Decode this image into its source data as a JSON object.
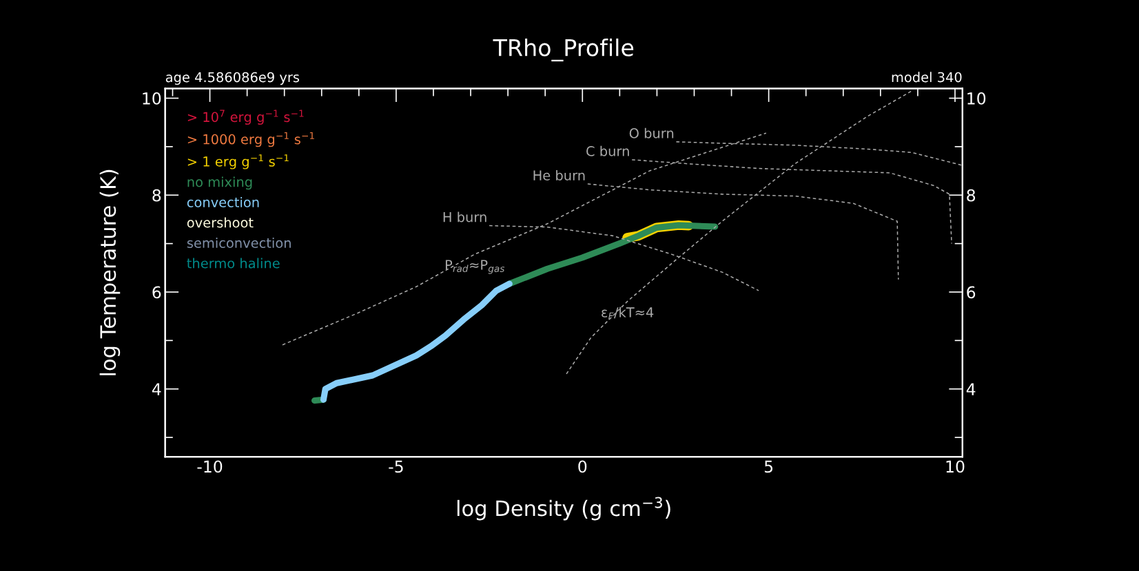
{
  "chart_data": {
    "type": "line",
    "title": "TRho_Profile",
    "xlabel": "log Density (g cm$^{−3}$)",
    "ylabel": "log Temperature (K)",
    "xlim": [
      -11.2,
      10.2
    ],
    "ylim": [
      2.6,
      10.2
    ],
    "y2lim": [
      2.6,
      10.2
    ],
    "xticks": [
      {
        "value": -11,
        "label": null
      },
      -10,
      {
        "value": -9,
        "label": null
      },
      {
        "value": -8,
        "label": null
      },
      {
        "value": -7,
        "label": null
      },
      {
        "value": -6,
        "label": null
      },
      -5,
      {
        "value": -4,
        "label": null
      },
      {
        "value": -3,
        "label": null
      },
      {
        "value": -2,
        "label": null
      },
      {
        "value": -1,
        "label": null
      },
      0,
      {
        "value": 1,
        "label": null
      },
      {
        "value": 2,
        "label": null
      },
      {
        "value": 3,
        "label": null
      },
      {
        "value": 4,
        "label": null
      },
      5,
      {
        "value": 6,
        "label": null
      },
      {
        "value": 7,
        "label": null
      },
      {
        "value": 8,
        "label": null
      },
      {
        "value": 9,
        "label": null
      },
      10
    ],
    "yticks": [
      {
        "value": 3,
        "label": null
      },
      4,
      {
        "value": 5,
        "label": null
      },
      6,
      {
        "value": 7,
        "label": null
      },
      8,
      {
        "value": 9,
        "label": null
      },
      10
    ],
    "y2ticks": [
      {
        "value": 3,
        "label": null
      },
      4,
      {
        "value": 5,
        "label": null
      },
      6,
      {
        "value": 7,
        "label": null
      },
      8,
      {
        "value": 9,
        "label": null
      },
      10
    ],
    "legend": "top left",
    "grid": false,
    "series": [
      {
        "name": "> 10$^{7}$ erg g$^{−1}$ s$^{−1}$",
        "color": "#d4143c",
        "line_style": "solid"
      },
      {
        "name": "> 1000 erg g$^{−1}$ s$^{−1}$",
        "color": "#f07a40",
        "line_style": "solid"
      },
      {
        "name": "> 1 erg g$^{−1}$ s$^{−1}$",
        "color": "#f5d200",
        "line_style": "solid",
        "x": [
          1.2,
          1.5,
          1.99,
          2.58,
          2.85
        ],
        "values": [
          7.12,
          7.16,
          7.33,
          7.38,
          7.37
        ]
      },
      {
        "name": "no mixing",
        "color": "#2e8b57",
        "line_style": "solid",
        "x": [
          -7.19,
          -6.95,
          -4.0,
          -1.96,
          -0.94,
          0,
          1.02,
          1.5,
          1.99,
          2.58,
          3.56
        ],
        "values": [
          3.76,
          3.78,
          null,
          6.17,
          6.48,
          6.71,
          7.01,
          7.16,
          7.33,
          7.38,
          7.35
        ]
      },
      {
        "name": "convection",
        "color": "#87cefa",
        "line_style": "solid",
        "x": [
          -6.95,
          -6.9,
          -6.6,
          -5.63,
          -4.46,
          -4.07,
          -3.68,
          -3.19,
          -2.7,
          -2.31,
          -1.96
        ],
        "values": [
          3.78,
          4.0,
          4.12,
          4.28,
          4.69,
          4.88,
          5.1,
          5.43,
          5.73,
          6.03,
          6.17
        ]
      },
      {
        "name": "overshoot",
        "color": "#fffde0",
        "line_style": "solid"
      },
      {
        "name": "semiconvection",
        "color": "#8090a8",
        "line_style": "solid"
      },
      {
        "name": "thermo haline",
        "color": "#008b8b",
        "line_style": "solid"
      },
      {
        "color": "#aaaaaa",
        "line_style": "dashed",
        "x": [
          -2.5,
          -0.94,
          0.82,
          2.39,
          3.75,
          4.73
        ],
        "values": [
          7.37,
          7.34,
          7.16,
          6.78,
          6.41,
          6.03
        ]
      },
      {
        "color": "#aaaaaa",
        "line_style": "dashed",
        "x": [
          0.14,
          1.8,
          3.75,
          5.71,
          7.27,
          8.45,
          8.48
        ],
        "values": [
          8.23,
          8.11,
          8.02,
          7.98,
          7.83,
          7.46,
          6.26
        ]
      },
      {
        "color": "#aaaaaa",
        "line_style": "dashed",
        "x": [
          1.33,
          2.78,
          4.73,
          6.69,
          8.25,
          9.42,
          9.85,
          9.91
        ],
        "values": [
          8.73,
          8.65,
          8.55,
          8.5,
          8.46,
          8.2,
          8.02,
          7.0
        ]
      },
      {
        "color": "#aaaaaa",
        "line_style": "dashed",
        "x": [
          2.52,
          3.75,
          5.71,
          7.66,
          8.84,
          10.17
        ],
        "values": [
          9.1,
          9.07,
          9.03,
          8.95,
          8.88,
          8.62
        ]
      },
      {
        "color": "#aaaaaa",
        "line_style": "dashed",
        "x": [
          -8.05,
          -7.59,
          -6.02,
          -4.46,
          -2.89,
          -0.94,
          1.8,
          4.93
        ],
        "values": [
          4.91,
          5.06,
          5.57,
          6.11,
          6.78,
          7.41,
          8.5,
          9.28
        ]
      },
      {
        "color": "#aaaaaa",
        "line_style": "dashed",
        "x": [
          -0.43,
          0.23,
          1.21,
          2.58,
          3.75,
          5.71,
          7.66,
          8.84
        ],
        "values": [
          4.31,
          5.06,
          5.81,
          6.71,
          7.46,
          8.65,
          9.63,
          10.15
        ]
      }
    ],
    "annotations": [
      {
        "text": "H burn",
        "x": -2.5,
        "y": 7.37
      },
      {
        "text": "He burn",
        "x": 0.14,
        "y": 8.23
      },
      {
        "text": "C burn",
        "x": 1.33,
        "y": 8.73
      },
      {
        "text": "O burn",
        "x": 2.52,
        "y": 9.1
      },
      {
        "text": "P$_{rad}$≈P$_{gas}$",
        "x": -2.89,
        "y": 6.78
      },
      {
        "text": "ε$_{F}$/kT≈4",
        "x": 1.21,
        "y": 5.81
      },
      "age 4.586086e9 yrs",
      "model 340"
    ]
  }
}
